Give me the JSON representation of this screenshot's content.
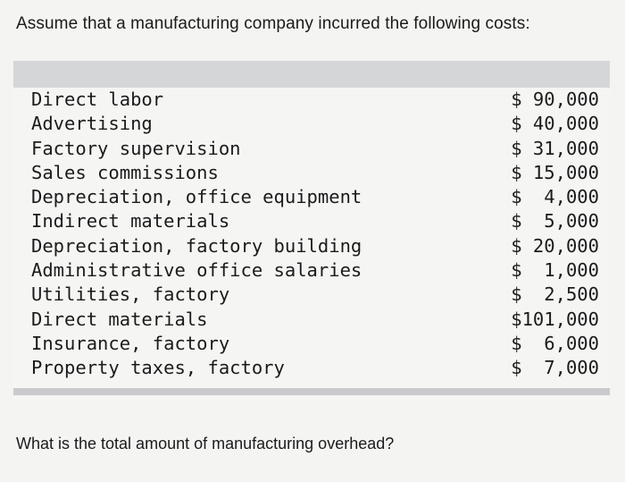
{
  "intro_text": "Assume that a manufacturing company incurred the following costs:",
  "costs": [
    {
      "label": "Direct labor",
      "amount": "$ 90,000"
    },
    {
      "label": "Advertising",
      "amount": "$ 40,000"
    },
    {
      "label": "Factory supervision",
      "amount": "$ 31,000"
    },
    {
      "label": "Sales commissions",
      "amount": "$ 15,000"
    },
    {
      "label": "Depreciation, office equipment",
      "amount": "$  4,000"
    },
    {
      "label": "Indirect materials",
      "amount": "$  5,000"
    },
    {
      "label": "Depreciation, factory building",
      "amount": "$ 20,000"
    },
    {
      "label": "Administrative office salaries",
      "amount": "$  1,000"
    },
    {
      "label": "Utilities, factory",
      "amount": "$  2,500"
    },
    {
      "label": "Direct materials",
      "amount": "$101,000"
    },
    {
      "label": "Insurance, factory",
      "amount": "$  6,000"
    },
    {
      "label": "Property taxes, factory",
      "amount": "$  7,000"
    }
  ],
  "question_text": "What is the total amount of manufacturing overhead?"
}
